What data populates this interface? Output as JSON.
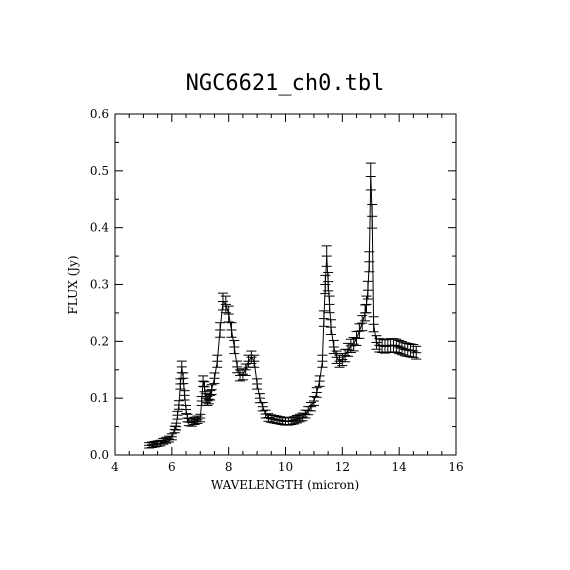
{
  "chart_data": {
    "type": "line",
    "title": "NGC6621_ch0.tbl",
    "xlabel": "WAVELENGTH (micron)",
    "ylabel": "FLUX (Jy)",
    "xlim": [
      4,
      16
    ],
    "ylim": [
      0,
      0.6
    ],
    "xticks": [
      4,
      6,
      8,
      10,
      12,
      14,
      16
    ],
    "yticks": [
      0.0,
      0.1,
      0.2,
      0.3,
      0.4,
      0.5,
      0.6
    ],
    "xtick_labels": [
      "4",
      "6",
      "8",
      "10",
      "12",
      "14",
      "16"
    ],
    "ytick_labels": [
      "0.0",
      "0.1",
      "0.2",
      "0.3",
      "0.4",
      "0.5",
      "0.6"
    ],
    "error_bars": true,
    "grid": false,
    "series": [
      {
        "x": [
          5.2,
          5.3,
          5.4,
          5.5,
          5.6,
          5.7,
          5.8,
          5.9,
          6.0,
          6.1,
          6.15,
          6.2,
          6.25,
          6.3,
          6.35,
          6.4,
          6.45,
          6.5,
          6.55,
          6.6,
          6.7,
          6.8,
          6.9,
          7.0,
          7.05,
          7.1,
          7.15,
          7.2,
          7.25,
          7.3,
          7.35,
          7.4,
          7.5,
          7.6,
          7.7,
          7.8,
          7.9,
          8.0,
          8.1,
          8.2,
          8.3,
          8.4,
          8.5,
          8.6,
          8.7,
          8.8,
          8.9,
          9.0,
          9.1,
          9.2,
          9.3,
          9.4,
          9.5,
          9.6,
          9.7,
          9.8,
          9.9,
          10.0,
          10.1,
          10.2,
          10.3,
          10.4,
          10.5,
          10.6,
          10.7,
          10.8,
          10.9,
          11.0,
          11.1,
          11.2,
          11.3,
          11.35,
          11.4,
          11.45,
          11.5,
          11.55,
          11.6,
          11.7,
          11.8,
          11.9,
          12.0,
          12.1,
          12.2,
          12.3,
          12.4,
          12.5,
          12.6,
          12.7,
          12.8,
          12.85,
          12.9,
          12.95,
          13.0,
          13.05,
          13.1,
          13.2,
          13.3,
          13.4,
          13.5,
          13.6,
          13.7,
          13.8,
          13.9,
          14.0,
          14.1,
          14.2,
          14.3,
          14.4,
          14.5,
          14.6
        ],
        "y": [
          0.017,
          0.018,
          0.019,
          0.02,
          0.021,
          0.024,
          0.026,
          0.028,
          0.032,
          0.045,
          0.05,
          0.07,
          0.088,
          0.125,
          0.155,
          0.135,
          0.105,
          0.08,
          0.065,
          0.058,
          0.057,
          0.06,
          0.062,
          0.065,
          0.095,
          0.13,
          0.12,
          0.1,
          0.095,
          0.098,
          0.105,
          0.115,
          0.135,
          0.165,
          0.22,
          0.27,
          0.265,
          0.248,
          0.22,
          0.19,
          0.155,
          0.14,
          0.142,
          0.15,
          0.165,
          0.172,
          0.165,
          0.125,
          0.1,
          0.085,
          0.072,
          0.066,
          0.064,
          0.063,
          0.062,
          0.061,
          0.06,
          0.059,
          0.059,
          0.06,
          0.061,
          0.063,
          0.065,
          0.067,
          0.072,
          0.078,
          0.085,
          0.095,
          0.11,
          0.13,
          0.165,
          0.24,
          0.3,
          0.35,
          0.305,
          0.265,
          0.225,
          0.19,
          0.172,
          0.165,
          0.168,
          0.175,
          0.185,
          0.192,
          0.195,
          0.205,
          0.218,
          0.232,
          0.25,
          0.265,
          0.29,
          0.34,
          0.49,
          0.42,
          0.23,
          0.198,
          0.193,
          0.192,
          0.191,
          0.192,
          0.193,
          0.193,
          0.192,
          0.19,
          0.188,
          0.186,
          0.185,
          0.184,
          0.183,
          0.18
        ]
      }
    ]
  }
}
